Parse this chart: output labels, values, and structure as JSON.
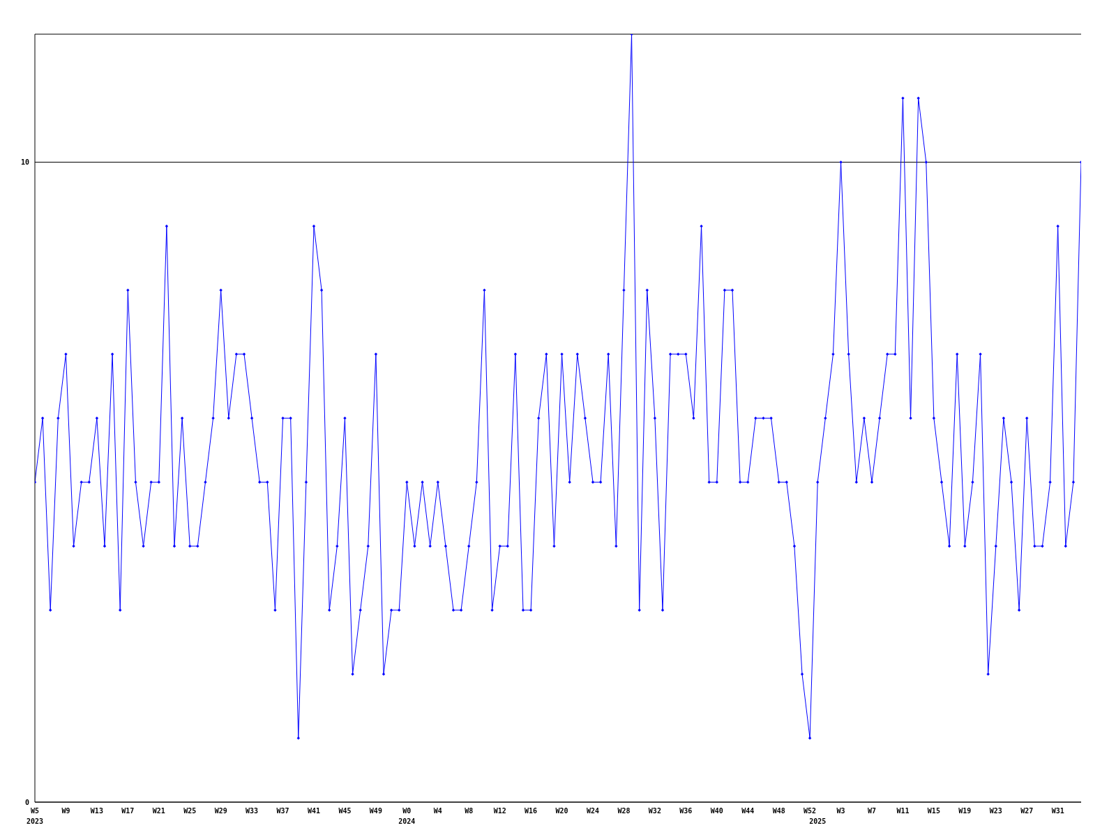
{
  "chart_data": {
    "type": "line",
    "categories": [
      "W5\n2023",
      null,
      null,
      null,
      "W9",
      null,
      null,
      null,
      "W13",
      null,
      null,
      null,
      "W17",
      null,
      null,
      null,
      "W21",
      null,
      null,
      null,
      "W25",
      null,
      null,
      null,
      "W29",
      null,
      null,
      null,
      "W33",
      null,
      null,
      null,
      "W37",
      null,
      null,
      null,
      "W41",
      null,
      null,
      null,
      "W45",
      null,
      null,
      null,
      "W49",
      null,
      null,
      null,
      "W0\n2024",
      null,
      null,
      null,
      "W4",
      null,
      null,
      null,
      "W8",
      null,
      null,
      null,
      "W12",
      null,
      null,
      null,
      "W16",
      null,
      null,
      null,
      "W20",
      null,
      null,
      null,
      "W24",
      null,
      null,
      null,
      "W28",
      null,
      null,
      null,
      "W32",
      null,
      null,
      null,
      "W36",
      null,
      null,
      null,
      "W40",
      null,
      null,
      null,
      "W44",
      null,
      null,
      null,
      "W48",
      null,
      null,
      null,
      "W52",
      "\n2025",
      null,
      null,
      "W3",
      null,
      null,
      null,
      "W7",
      null,
      null,
      null,
      "W11",
      null,
      null,
      null,
      "W15",
      null,
      null,
      null,
      "W19",
      null,
      null,
      null,
      "W23",
      null,
      null,
      null,
      "W27",
      null,
      null,
      null,
      "W31",
      null,
      null,
      null
    ],
    "series": [
      {
        "color": "#0000ff",
        "values": [
          5,
          6,
          3,
          6,
          7,
          4,
          5,
          5,
          6,
          4,
          7,
          3,
          8,
          5,
          4,
          5,
          5,
          9,
          4,
          6,
          4,
          4,
          5,
          6,
          8,
          6,
          7,
          7,
          6,
          5,
          5,
          3,
          6,
          6,
          1,
          5,
          9,
          8,
          3,
          4,
          6,
          2,
          3,
          4,
          7,
          2,
          3,
          3,
          5,
          4,
          5,
          4,
          5,
          4,
          3,
          3,
          4,
          5,
          8,
          3,
          4,
          4,
          7,
          3,
          3,
          6,
          7,
          4,
          7,
          5,
          7,
          6,
          5,
          5,
          7,
          4,
          8,
          12,
          3,
          8,
          6,
          3,
          7,
          7,
          7,
          6,
          9,
          5,
          5,
          8,
          8,
          5,
          5,
          6,
          6,
          6,
          5,
          5,
          4,
          2,
          1,
          5,
          6,
          7,
          10,
          7,
          5,
          6,
          5,
          6,
          7,
          7,
          11,
          6,
          11,
          10,
          6,
          5,
          4,
          7,
          4,
          5,
          7,
          2,
          4,
          6,
          5,
          3,
          6,
          4,
          4,
          5,
          9,
          4,
          5,
          10
        ]
      }
    ],
    "ylim": [
      0,
      12
    ],
    "yticks": [
      0,
      10
    ],
    "grid": "y",
    "marker": "diamond",
    "line_style": "solid"
  }
}
